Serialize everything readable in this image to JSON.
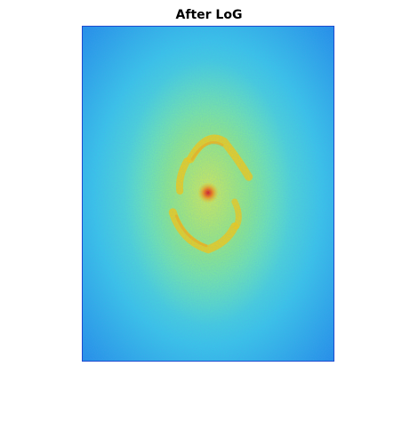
{
  "figure": {
    "title": "After LoG"
  },
  "image": {
    "colormap": "jet",
    "colors": {
      "edge": "#1d4bd0",
      "outer": "#2ab8e8",
      "mid": "#4fe0d2",
      "inner": "#9ef07a",
      "ring": "#e8f040",
      "peak": "#ffd000",
      "center": "#e01010"
    }
  }
}
